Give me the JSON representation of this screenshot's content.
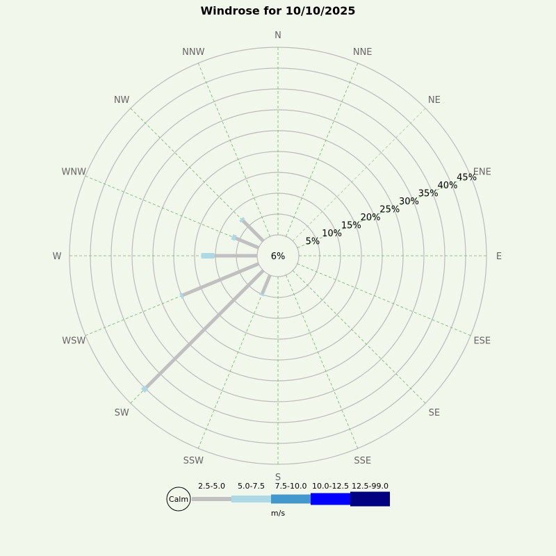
{
  "chart_data": {
    "type": "windrose",
    "title": "Windrose for 10/10/2025",
    "calm_label": "6%",
    "directions": [
      "N",
      "NNE",
      "NE",
      "ENE",
      "E",
      "ESE",
      "SE",
      "SSE",
      "S",
      "SSW",
      "SW",
      "WSW",
      "W",
      "WNW",
      "NW",
      "NNW"
    ],
    "radial_ticks": [
      5,
      10,
      15,
      20,
      25,
      30,
      35,
      40,
      45
    ],
    "radial_tick_labels": [
      "5%",
      "10%",
      "15%",
      "20%",
      "25%",
      "30%",
      "35%",
      "40%",
      "45%"
    ],
    "rmax": 45,
    "speed_bins": [
      "2.5-5.0",
      "5.0-7.5",
      "7.5-10.0",
      "10.0-12.5",
      "12.5-99.0"
    ],
    "bin_colors": [
      "#c0c0c0",
      "#add8e6",
      "#4499cc",
      "#0000ff",
      "#000080"
    ],
    "legend_calm": "Calm",
    "legend_unit": "m/s",
    "series": [
      {
        "direction": "SSW",
        "values": [
          4.9,
          0.4,
          0,
          0,
          0
        ]
      },
      {
        "direction": "SW",
        "values": [
          39.7,
          1.1,
          0,
          0,
          0
        ]
      },
      {
        "direction": "WSW",
        "values": [
          19.7,
          0.6,
          0,
          0,
          0
        ]
      },
      {
        "direction": "W",
        "values": [
          10.3,
          3.1,
          0,
          0,
          0
        ]
      },
      {
        "direction": "WNW",
        "values": [
          6.0,
          0.9,
          0,
          0,
          0
        ]
      },
      {
        "direction": "NW",
        "values": [
          6.9,
          0.6,
          0,
          0,
          0
        ]
      }
    ]
  }
}
